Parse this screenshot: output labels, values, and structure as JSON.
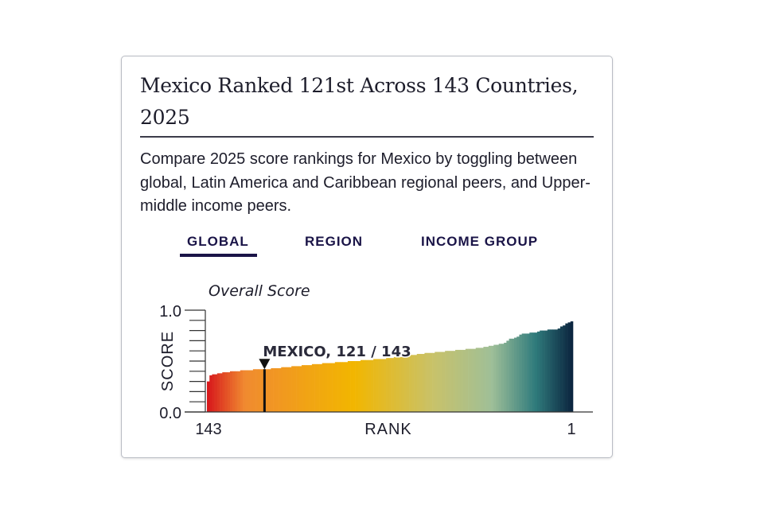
{
  "card": {
    "title": "Mexico Ranked 121st Across 143 Countries, 2025",
    "description": "Compare 2025 score rankings for Mexico by toggling between global, Latin America and Caribbean regional peers, and Upper-middle income peers."
  },
  "tabs": [
    {
      "label": "GLOBAL",
      "active": true
    },
    {
      "label": "REGION",
      "active": false
    },
    {
      "label": "INCOME GROUP",
      "active": false
    }
  ],
  "chart_data": {
    "type": "bar",
    "title": "Overall Score",
    "xlabel": "RANK",
    "ylabel": "SCORE",
    "ylim": [
      0,
      1
    ],
    "ytick_labels": [
      "0.0",
      "1.0"
    ],
    "minor_tick_step": 0.1,
    "xtick_labels": {
      "left": "143",
      "right": "1"
    },
    "order": "ascending score, rank 143 on left to rank 1 on right",
    "highlight": {
      "label": "MEXICO, 121 / 143",
      "rank": 121,
      "total": 143
    },
    "colors": {
      "low": "#d7191c",
      "mid_low": "#f08a30",
      "mid": "#f2b600",
      "mid_high": "#c8c26a",
      "high_mid": "#9fbf98",
      "high": "#2f7b7c",
      "top": "#0c2640",
      "highlight": "#111111",
      "text": "#1a1447"
    },
    "values": [
      0.3,
      0.36,
      0.37,
      0.37,
      0.38,
      0.38,
      0.39,
      0.39,
      0.39,
      0.4,
      0.4,
      0.4,
      0.4,
      0.41,
      0.41,
      0.41,
      0.41,
      0.41,
      0.42,
      0.42,
      0.42,
      0.42,
      0.42,
      0.42,
      0.42,
      0.43,
      0.43,
      0.43,
      0.43,
      0.44,
      0.44,
      0.44,
      0.44,
      0.45,
      0.45,
      0.45,
      0.45,
      0.46,
      0.46,
      0.46,
      0.46,
      0.47,
      0.47,
      0.47,
      0.47,
      0.48,
      0.48,
      0.48,
      0.48,
      0.48,
      0.49,
      0.49,
      0.49,
      0.49,
      0.49,
      0.5,
      0.5,
      0.5,
      0.5,
      0.5,
      0.51,
      0.51,
      0.51,
      0.51,
      0.51,
      0.52,
      0.52,
      0.52,
      0.52,
      0.52,
      0.53,
      0.53,
      0.53,
      0.54,
      0.54,
      0.54,
      0.55,
      0.55,
      0.55,
      0.56,
      0.56,
      0.56,
      0.57,
      0.57,
      0.57,
      0.58,
      0.58,
      0.58,
      0.58,
      0.59,
      0.59,
      0.59,
      0.59,
      0.6,
      0.6,
      0.6,
      0.6,
      0.61,
      0.61,
      0.61,
      0.61,
      0.62,
      0.62,
      0.62,
      0.62,
      0.63,
      0.63,
      0.63,
      0.64,
      0.64,
      0.65,
      0.65,
      0.66,
      0.66,
      0.67,
      0.67,
      0.68,
      0.7,
      0.72,
      0.72,
      0.73,
      0.74,
      0.76,
      0.77,
      0.77,
      0.77,
      0.78,
      0.78,
      0.78,
      0.79,
      0.8,
      0.8,
      0.8,
      0.81,
      0.81,
      0.81,
      0.81,
      0.82,
      0.84,
      0.85,
      0.87,
      0.88,
      0.89
    ]
  }
}
